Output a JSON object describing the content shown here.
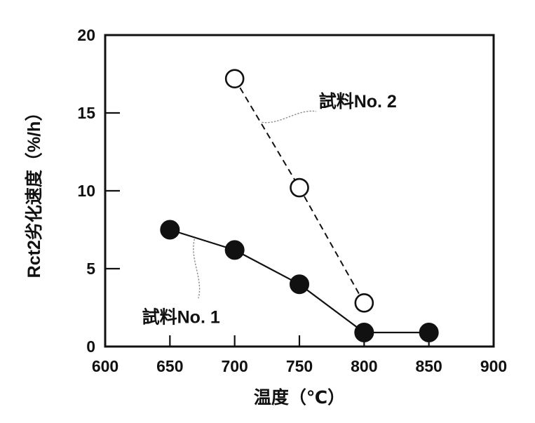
{
  "colors": {
    "ink": "#111111",
    "background": "#ffffff",
    "leader": "#8c8c8c",
    "open_marker_fill": "#ffffff"
  },
  "chart_data": {
    "type": "line",
    "title": "",
    "xlabel": "温度（℃）",
    "ylabel": "Rct2劣化速度（%/h）",
    "xlim": [
      600,
      900
    ],
    "ylim": [
      0,
      20
    ],
    "x_ticks": [
      600,
      650,
      700,
      750,
      800,
      850,
      900
    ],
    "y_ticks": [
      0,
      5,
      10,
      15,
      20
    ],
    "grid": false,
    "legend_position": "inline-annotations",
    "series": [
      {
        "name": "試料No. 2",
        "marker": "open-circle",
        "line_style": "dashed",
        "color": "#111111",
        "x": [
          700,
          750,
          800
        ],
        "y": [
          17.2,
          10.2,
          2.8
        ]
      },
      {
        "name": "試料No. 1",
        "marker": "filled-circle",
        "line_style": "solid",
        "color": "#111111",
        "x": [
          650,
          700,
          750,
          800,
          850
        ],
        "y": [
          7.5,
          6.2,
          4.0,
          0.9,
          0.9
        ]
      }
    ],
    "annotations": [
      {
        "text": "試料No. 2",
        "x": 765,
        "y": 15.35,
        "leader_from": {
          "x": 721.0,
          "y": 14.4
        },
        "leader_to": {
          "x": 763.0,
          "y": 15.1
        }
      },
      {
        "text": "試料No. 1",
        "x": 628.5,
        "y": 1.5,
        "leader_from": {
          "x": 669.0,
          "y": 6.9
        },
        "leader_to": {
          "x": 672.0,
          "y": 3.1
        }
      }
    ]
  }
}
